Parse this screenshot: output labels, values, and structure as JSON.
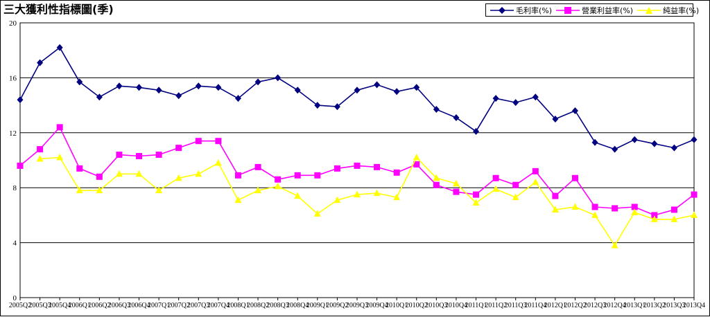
{
  "chart_data": {
    "type": "line",
    "title": "三大獲利性指標圖(季)",
    "ylim": [
      0,
      20
    ],
    "yticks": [
      0,
      4,
      8,
      12,
      16,
      20
    ],
    "grid": true,
    "legend_position": "top-right",
    "categories": [
      "2005Q2",
      "2005Q3",
      "2005Q4",
      "2006Q1",
      "2006Q2",
      "2006Q3",
      "2006Q4",
      "2007Q1",
      "2007Q2",
      "2007Q3",
      "2007Q4",
      "2008Q1",
      "2008Q2",
      "2008Q3",
      "2008Q4",
      "2009Q1",
      "2009Q2",
      "2009Q3",
      "2009Q4",
      "2010Q1",
      "2010Q2",
      "2010Q3",
      "2010Q4",
      "2011Q1",
      "2011Q2",
      "2011Q3",
      "2011Q4",
      "2012Q1",
      "2012Q2",
      "2012Q3",
      "2012Q4",
      "2013Q1",
      "2013Q2",
      "2013Q3",
      "2013Q4"
    ],
    "series": [
      {
        "name": "毛利率(%)",
        "color": "#000080",
        "marker": "diamond",
        "values": [
          14.4,
          17.1,
          18.2,
          15.7,
          14.6,
          15.4,
          15.3,
          15.1,
          14.7,
          15.4,
          15.3,
          14.5,
          15.7,
          16.0,
          15.1,
          14.0,
          13.9,
          15.1,
          15.5,
          15.0,
          15.3,
          13.7,
          13.1,
          12.1,
          14.5,
          14.2,
          14.6,
          13.0,
          13.6,
          11.3,
          10.8,
          11.5,
          11.2,
          10.9,
          11.5
        ]
      },
      {
        "name": "營業利益率(%)",
        "color": "#FF00FF",
        "marker": "square",
        "values": [
          9.6,
          10.8,
          12.4,
          9.4,
          8.8,
          10.4,
          10.3,
          10.4,
          10.9,
          11.4,
          11.4,
          8.9,
          9.5,
          8.6,
          8.9,
          8.9,
          9.4,
          9.6,
          9.5,
          9.1,
          9.7,
          8.2,
          7.7,
          7.5,
          8.7,
          8.2,
          9.2,
          7.4,
          8.7,
          6.6,
          6.5,
          6.6,
          6.0,
          6.4,
          7.5
        ]
      },
      {
        "name": "純益率(%)",
        "color": "#FFFF00",
        "marker": "triangle",
        "values": [
          null,
          10.1,
          10.2,
          7.8,
          7.8,
          9.0,
          9.0,
          7.8,
          8.7,
          9.0,
          9.8,
          7.1,
          7.8,
          8.1,
          7.4,
          6.1,
          7.1,
          7.5,
          7.6,
          7.3,
          10.2,
          8.7,
          8.3,
          6.9,
          7.9,
          7.3,
          8.4,
          6.4,
          6.6,
          6.0,
          3.8,
          6.2,
          5.7,
          5.7,
          6.0
        ]
      }
    ]
  }
}
